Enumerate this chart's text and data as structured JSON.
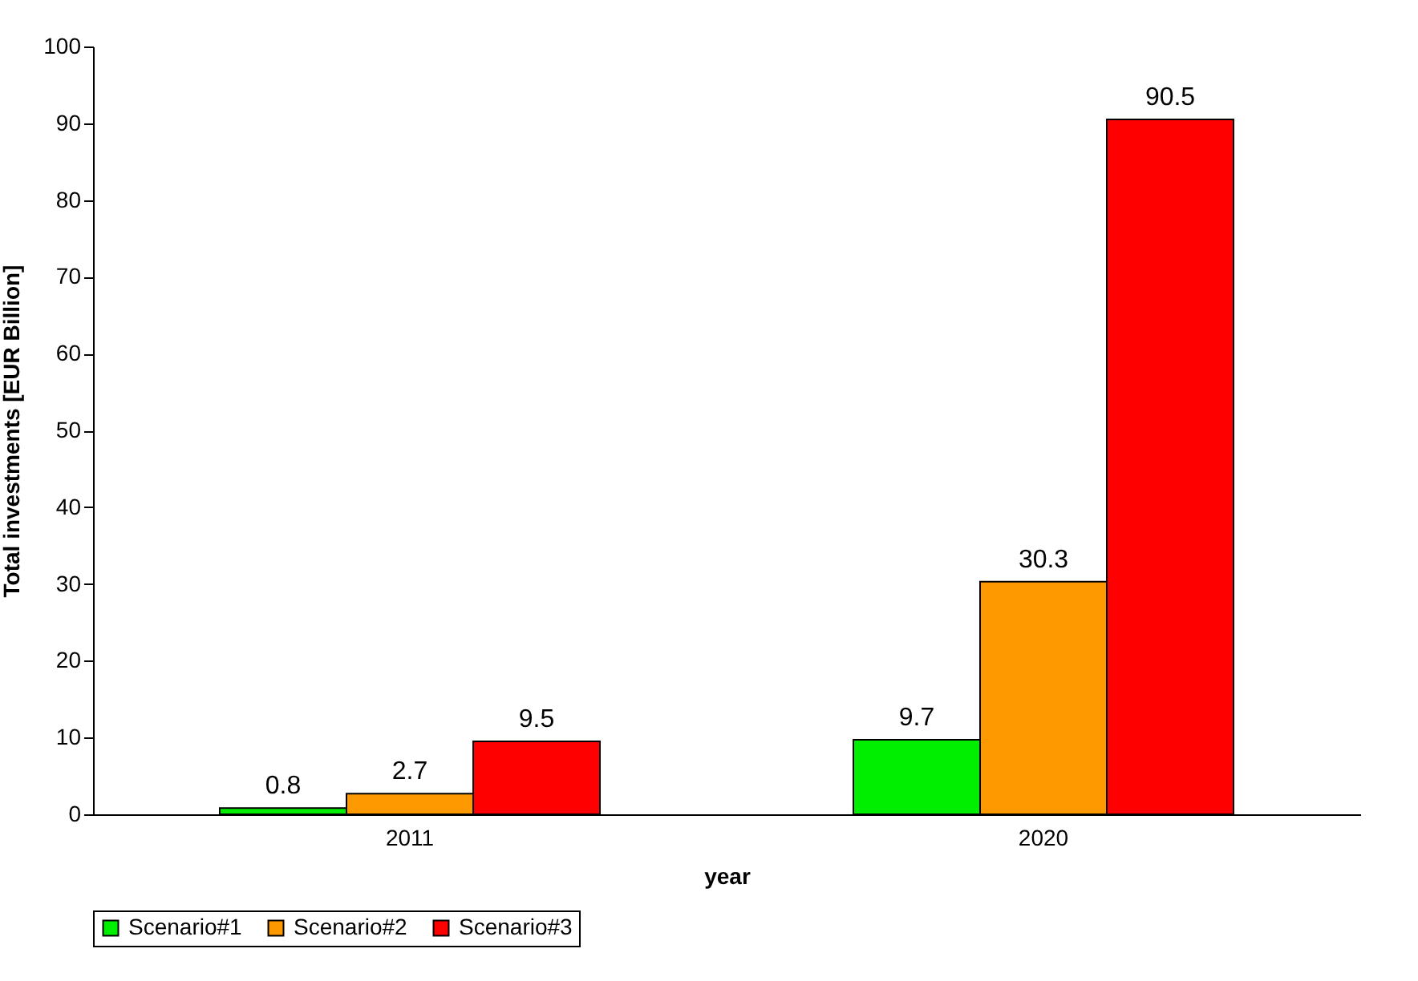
{
  "chart_data": {
    "type": "bar",
    "xlabel": "year",
    "ylabel": "Total investments  [EUR Billion]",
    "categories": [
      "2011",
      "2020"
    ],
    "series": [
      {
        "name": "Scenario#1",
        "color": "#00ee00",
        "values": [
          0.8,
          9.7
        ]
      },
      {
        "name": "Scenario#2",
        "color": "#ff9900",
        "values": [
          2.7,
          30.3
        ]
      },
      {
        "name": "Scenario#3",
        "color": "#ff0000",
        "values": [
          9.5,
          90.5
        ]
      }
    ],
    "ylim": [
      0,
      100
    ],
    "yticks": [
      0,
      10,
      20,
      30,
      40,
      50,
      60,
      70,
      80,
      90,
      100
    ],
    "data_labels": true,
    "legend": "bottom",
    "grid": false
  }
}
